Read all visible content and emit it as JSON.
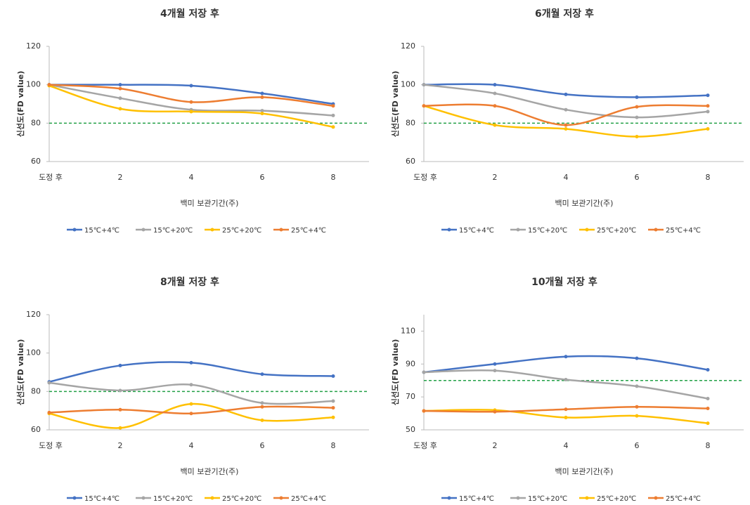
{
  "chart_data": [
    {
      "type": "line",
      "title": "4개월 저장 후",
      "x_label": "백미 보관기간(주)",
      "y_label": "신선도(FD value)",
      "categories": [
        "도정 후",
        "2",
        "4",
        "6",
        "8"
      ],
      "ylim": [
        60,
        120
      ],
      "yticks": [
        60,
        80,
        100,
        120
      ],
      "reference_line": {
        "value": 80,
        "color": "#22a046"
      },
      "series": [
        {
          "name": "15℃+4℃",
          "color": "#4472c4",
          "values": [
            100,
            100,
            99.5,
            95.5,
            90
          ]
        },
        {
          "name": "15℃+20℃",
          "color": "#a5a5a5",
          "values": [
            100,
            93,
            87,
            86.5,
            84
          ]
        },
        {
          "name": "25℃+20℃",
          "color": "#ffc000",
          "values": [
            99.5,
            87.5,
            86,
            85,
            78
          ]
        },
        {
          "name": "25℃+4℃",
          "color": "#ed7d31",
          "values": [
            100,
            98,
            91,
            93.5,
            89
          ]
        }
      ]
    },
    {
      "type": "line",
      "title": "6개월 저장 후",
      "x_label": "백미 보관기간(주)",
      "y_label": "신선도(FD value)",
      "categories": [
        "도정 후",
        "2",
        "4",
        "6",
        "8"
      ],
      "ylim": [
        60,
        120
      ],
      "yticks": [
        60,
        80,
        100,
        120
      ],
      "reference_line": {
        "value": 80,
        "color": "#22a046"
      },
      "series": [
        {
          "name": "15℃+4℃",
          "color": "#4472c4",
          "values": [
            100,
            100,
            95,
            93.5,
            94.5
          ]
        },
        {
          "name": "15℃+20℃",
          "color": "#a5a5a5",
          "values": [
            100,
            95.5,
            87,
            83,
            86
          ]
        },
        {
          "name": "25℃+20℃",
          "color": "#ffc000",
          "values": [
            89,
            79,
            77,
            73,
            77
          ]
        },
        {
          "name": "25℃+4℃",
          "color": "#ed7d31",
          "values": [
            89,
            89,
            79,
            88.5,
            89
          ]
        }
      ]
    },
    {
      "type": "line",
      "title": "8개월 저장 후",
      "x_label": "백미 보관기간(주)",
      "y_label": "신선도(FD value)",
      "categories": [
        "도정 후",
        "2",
        "4",
        "6",
        "8"
      ],
      "ylim": [
        60,
        120
      ],
      "yticks": [
        60,
        80,
        100,
        120
      ],
      "reference_line": {
        "value": 80,
        "color": "#22a046"
      },
      "series": [
        {
          "name": "15℃+4℃",
          "color": "#4472c4",
          "values": [
            85,
            93.5,
            95,
            89,
            88
          ]
        },
        {
          "name": "15℃+20℃",
          "color": "#a5a5a5",
          "values": [
            84.5,
            80.5,
            83.5,
            74,
            75
          ]
        },
        {
          "name": "25℃+20℃",
          "color": "#ffc000",
          "values": [
            68.5,
            61,
            73.5,
            65,
            66.5
          ]
        },
        {
          "name": "25℃+4℃",
          "color": "#ed7d31",
          "values": [
            69,
            70.5,
            68.5,
            72,
            71.5
          ]
        }
      ]
    },
    {
      "type": "line",
      "title": "10개월 저장 후",
      "x_label": "백미 보관기간(주)",
      "y_label": "신선도(FD value)",
      "categories": [
        "도정 후",
        "2",
        "4",
        "6",
        "8"
      ],
      "ylim": [
        50,
        120
      ],
      "yticks": [
        50,
        70,
        90,
        110
      ],
      "reference_line": {
        "value": 80,
        "color": "#22a046"
      },
      "series": [
        {
          "name": "15℃+4℃",
          "color": "#4472c4",
          "values": [
            85,
            90,
            94.5,
            93.5,
            86.5
          ]
        },
        {
          "name": "15℃+20℃",
          "color": "#a5a5a5",
          "values": [
            85,
            86,
            80.5,
            76.5,
            69
          ]
        },
        {
          "name": "25℃+20℃",
          "color": "#ffc000",
          "values": [
            61.5,
            62,
            57.5,
            58.5,
            54
          ]
        },
        {
          "name": "25℃+4℃",
          "color": "#ed7d31",
          "values": [
            61.5,
            61,
            62.5,
            64,
            63
          ]
        }
      ]
    }
  ]
}
